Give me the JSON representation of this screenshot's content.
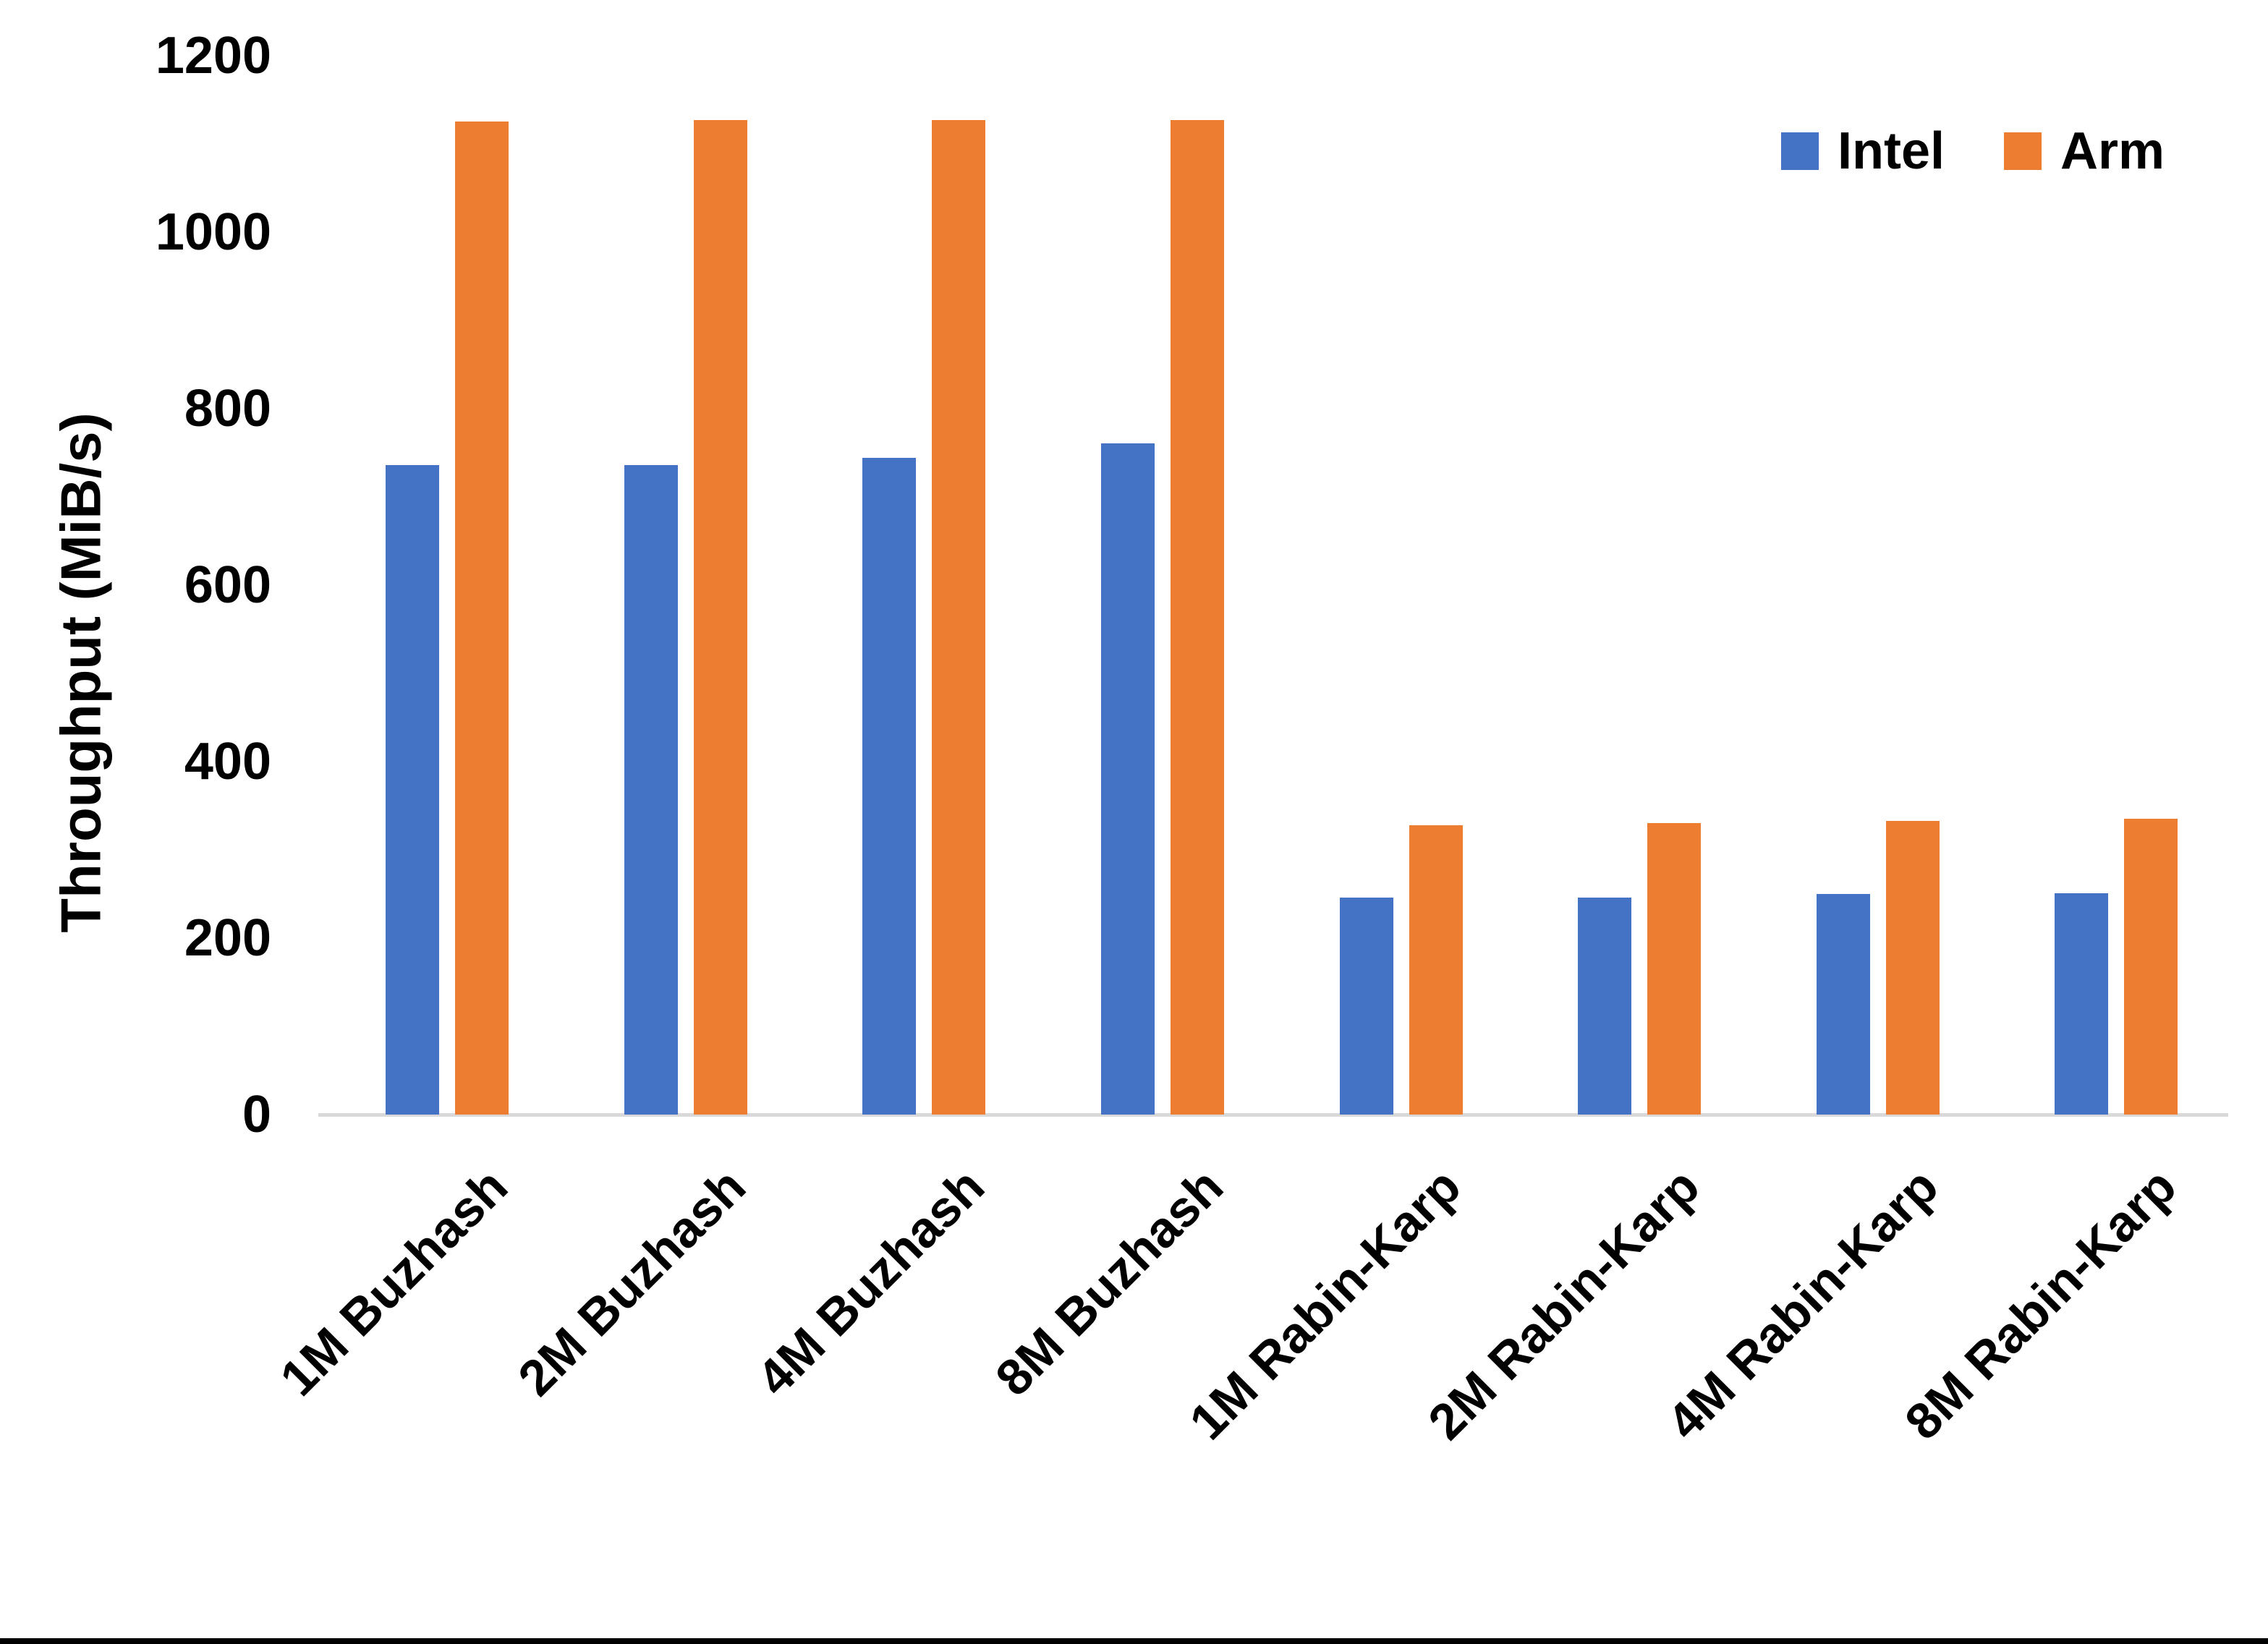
{
  "page": {
    "background": "#FFFFFF",
    "bottom_border_color": "#000000"
  },
  "chart_data": {
    "type": "bar",
    "title": "",
    "xlabel": "",
    "ylabel": "Throughput (MiB/s)",
    "ylim": [
      0,
      1200
    ],
    "ytick_step": 200,
    "ytick_labels": [
      "0",
      "200",
      "400",
      "600",
      "800",
      "1000",
      "1200"
    ],
    "grid": false,
    "legend_position": "top-right",
    "categories": [
      "1M Buzhash",
      "2M Buzhash",
      "4M Buzhash",
      "8M Buzhash",
      "1M Rabin-Karp",
      "2M Rabin-Karp",
      "4M Rabin-Karp",
      "8M Rabin-Karp"
    ],
    "series": [
      {
        "name": "Intel",
        "color": "#4472C4",
        "values": [
          736,
          736,
          744,
          761,
          246,
          246,
          250,
          251
        ]
      },
      {
        "name": "Arm",
        "color": "#ED7D31",
        "values": [
          1125,
          1127,
          1127,
          1127,
          328,
          330,
          333,
          335
        ]
      }
    ],
    "axis_line_color": "#D9D9D9",
    "text_color": "#000000"
  }
}
